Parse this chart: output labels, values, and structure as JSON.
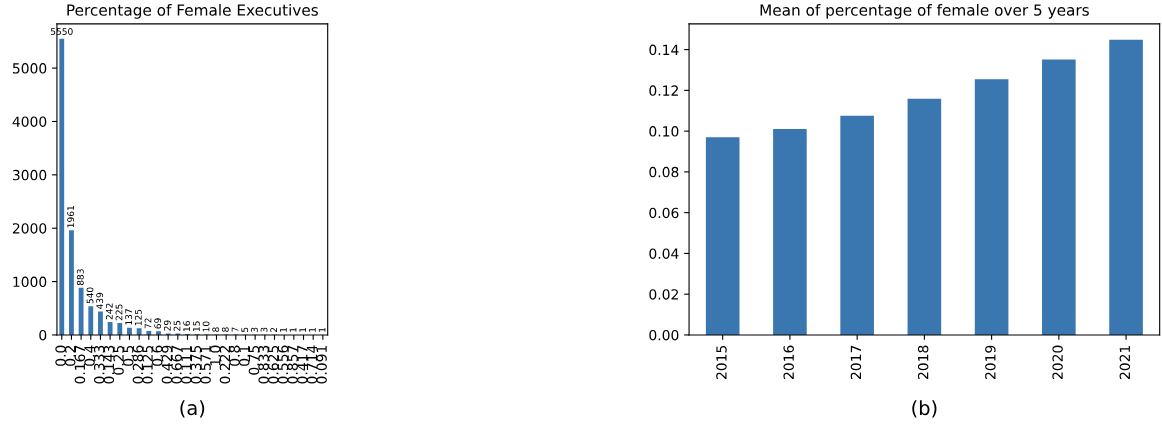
{
  "chart_data": [
    {
      "type": "bar",
      "title": "Percentage of Female Executives",
      "annotations": [
        "(a)"
      ],
      "categories": [
        "0.0",
        "0.2",
        "0.167",
        "0.4",
        "0.333",
        "0.143",
        "0.25",
        "0.5",
        "0.286",
        "0.125",
        "0.6",
        "0.429",
        "0.667",
        "0.111",
        "0.375",
        "0.571",
        "1.0",
        "0.222",
        "0.8",
        "0.1",
        "0.75",
        "0.833",
        "0.625",
        "0.556",
        "0.857",
        "0.417",
        "0.714",
        "0.091"
      ],
      "values": [
        5550,
        1961,
        883,
        540,
        439,
        242,
        225,
        137,
        125,
        72,
        69,
        29,
        25,
        16,
        15,
        10,
        8,
        8,
        7,
        5,
        3,
        3,
        2,
        1,
        1,
        1,
        1,
        1
      ],
      "color": "#3a76af",
      "ylim": [
        0,
        5828
      ],
      "yticks": [
        0,
        1000,
        2000,
        3000,
        4000,
        5000
      ],
      "data_labels": true,
      "grid": false
    },
    {
      "type": "bar",
      "title": "Mean of percentage of female over 5 years",
      "annotations": [
        "(b)"
      ],
      "categories": [
        "2015",
        "2016",
        "2017",
        "2018",
        "2019",
        "2020",
        "2021"
      ],
      "values": [
        0.097,
        0.1011,
        0.1075,
        0.1159,
        0.1254,
        0.1352,
        0.1448
      ],
      "color": "#3a76af",
      "ylim": [
        0,
        0.1526
      ],
      "yticks": [
        {
          "value": 0,
          "label": "0.00"
        },
        {
          "value": 0.02,
          "label": "0.02"
        },
        {
          "value": 0.04,
          "label": "0.04"
        },
        {
          "value": 0.06,
          "label": "0.06"
        },
        {
          "value": 0.08,
          "label": "0.08"
        },
        {
          "value": 0.1,
          "label": "0.10"
        },
        {
          "value": 0.12,
          "label": "0.12"
        },
        {
          "value": 0.14,
          "label": "0.14"
        }
      ],
      "grid": false
    }
  ]
}
